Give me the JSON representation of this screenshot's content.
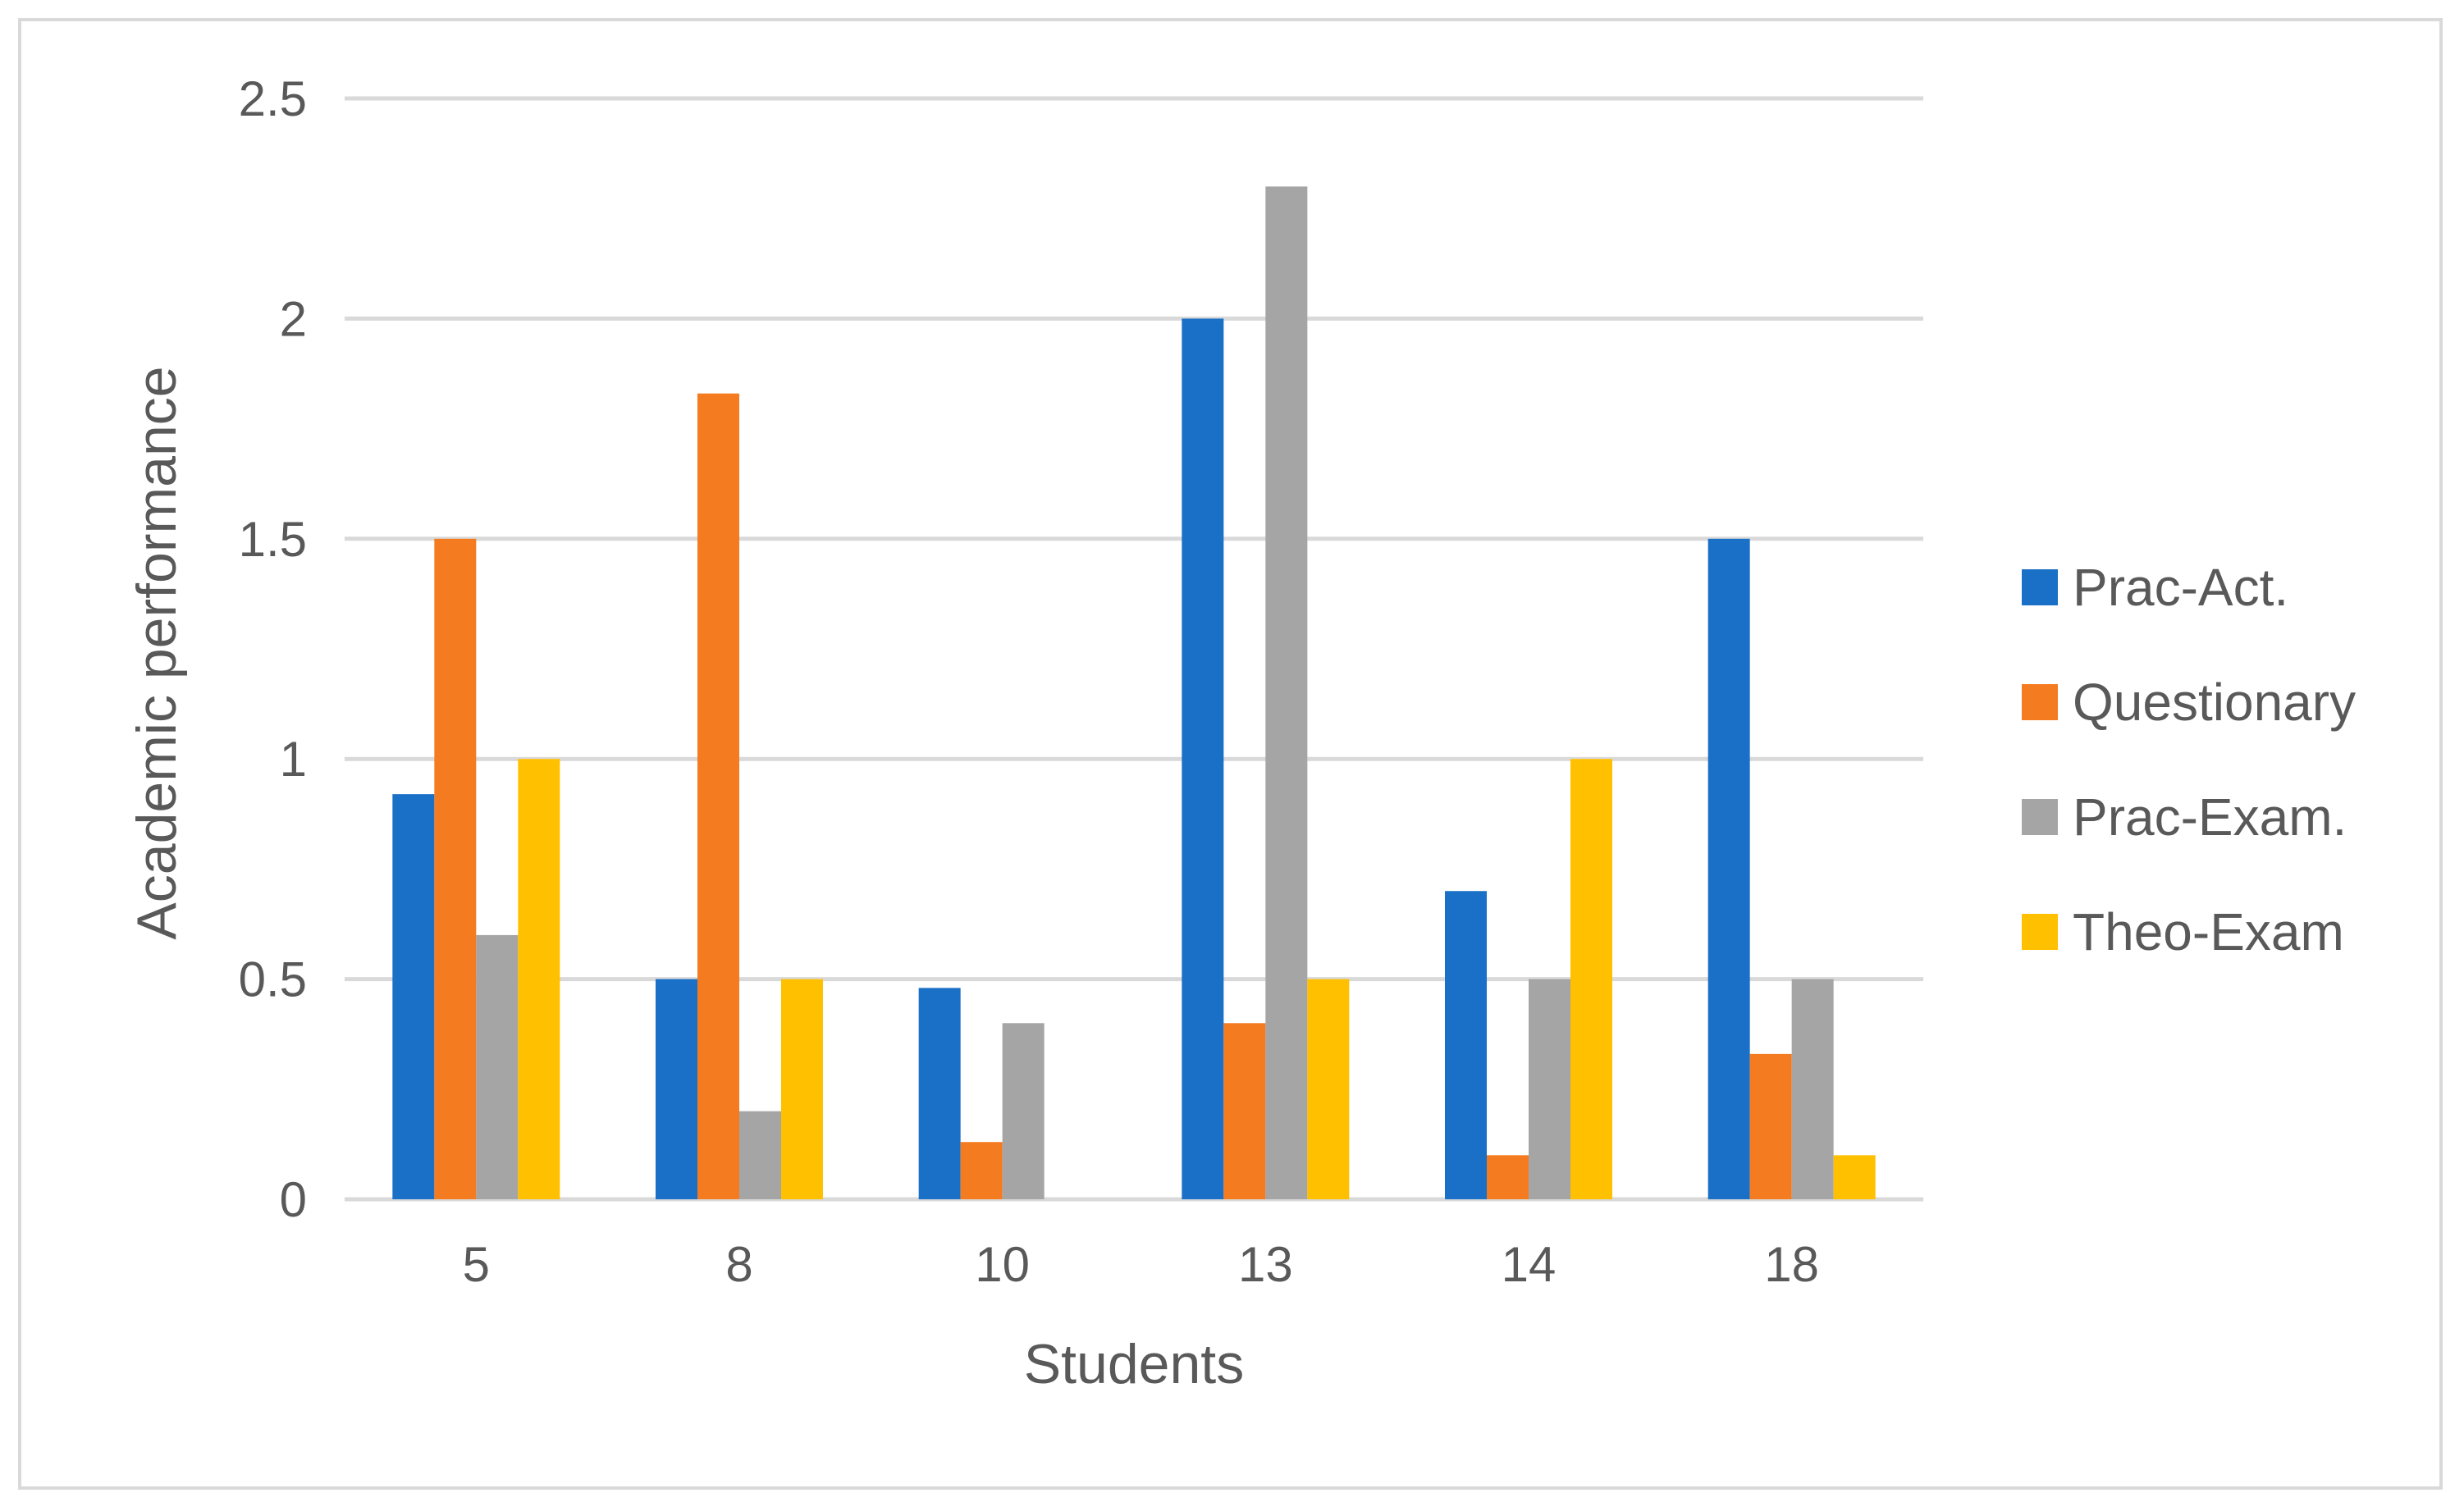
{
  "chart_data": {
    "type": "bar",
    "title": "",
    "xlabel": "Students",
    "ylabel": "Academic performance",
    "categories": [
      "5",
      "8",
      "10",
      "13",
      "14",
      "18"
    ],
    "series": [
      {
        "name": "Prac-Act.",
        "color": "#1a70c6",
        "values": [
          0.92,
          0.5,
          0.48,
          2.0,
          0.7,
          1.5
        ]
      },
      {
        "name": "Questionary",
        "color": "#f47b20",
        "values": [
          1.5,
          1.83,
          0.13,
          0.4,
          0.1,
          0.33
        ]
      },
      {
        "name": "Prac-Exam.",
        "color": "#a5a5a5",
        "values": [
          0.6,
          0.2,
          0.4,
          2.3,
          0.5,
          0.5
        ]
      },
      {
        "name": "Theo-Exam",
        "color": "#ffc000",
        "values": [
          1.0,
          0.5,
          0.0,
          0.5,
          1.0,
          0.1
        ]
      }
    ],
    "ylim": [
      0,
      2.5
    ],
    "yticks": [
      "0",
      "0.5",
      "1",
      "1.5",
      "2",
      "2.5"
    ],
    "grid": true,
    "legend_position": "right"
  }
}
